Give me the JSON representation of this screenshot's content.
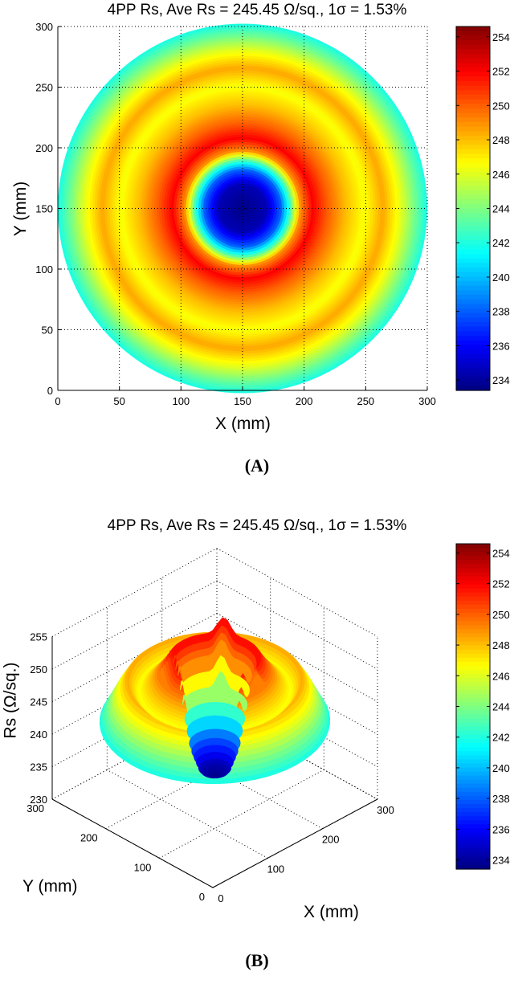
{
  "chart_data": [
    {
      "type": "heatmap",
      "title": "4PP Rs, Ave Rs = 245.45 Ω/sq., 1σ = 1.53%",
      "xlabel": "X (mm)",
      "ylabel": "Y (mm)",
      "xlim": [
        0,
        300
      ],
      "ylim": [
        0,
        300
      ],
      "xticks": [
        0,
        50,
        100,
        150,
        200,
        250,
        300
      ],
      "yticks": [
        0,
        50,
        100,
        150,
        200,
        250,
        300
      ],
      "grid": true,
      "colormap": "jet",
      "clim": [
        233.4,
        254.6
      ],
      "colorbar_ticks": [
        234,
        236,
        238,
        240,
        242,
        244,
        246,
        248,
        250,
        252,
        254
      ],
      "wafer_center_mm": [
        150,
        150
      ],
      "wafer_radius_mm": 150,
      "radial_profile": {
        "r_mm": [
          0,
          20,
          32,
          40,
          48,
          58,
          70,
          85,
          100,
          115,
          130,
          142,
          150
        ],
        "rs": [
          233.5,
          234.5,
          238,
          243,
          249,
          252,
          250,
          248,
          246.5,
          248.5,
          246,
          243.5,
          242
        ]
      },
      "caption": "(A)"
    },
    {
      "type": "surface",
      "title": "4PP Rs, Ave Rs = 245.45 Ω/sq., 1σ = 1.53%",
      "xlabel": "X (mm)",
      "ylabel": "Y (mm)",
      "zlabel": "Rs (Ω/sq.)",
      "xlim": [
        0,
        300
      ],
      "ylim": [
        0,
        300
      ],
      "zlim": [
        230,
        255
      ],
      "xticks": [
        0,
        100,
        200,
        300
      ],
      "yticks": [
        0,
        100,
        200,
        300
      ],
      "zticks": [
        230,
        235,
        240,
        245,
        250,
        255
      ],
      "grid": true,
      "colormap": "jet",
      "clim": [
        233.4,
        254.6
      ],
      "colorbar_ticks": [
        234,
        236,
        238,
        240,
        242,
        244,
        246,
        248,
        250,
        252,
        254
      ],
      "caption": "(B)"
    }
  ]
}
